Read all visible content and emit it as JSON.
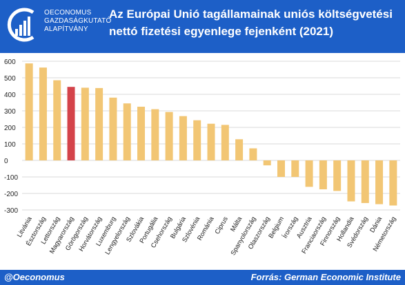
{
  "logo": {
    "lines": [
      "OECONOMUS",
      "GAZDASÁGKUTATÓ",
      "ALAPÍTVÁNY"
    ]
  },
  "header": {
    "title_lines": [
      "Az Európai Unió tagállamainak uniós költségvetési",
      "nettó fizetési egyenlege fejenként (2021)"
    ]
  },
  "footer": {
    "left": "@Oeconomus",
    "right": "Forrás: German Economic Institute"
  },
  "colors": {
    "header_bg": "#1d5fc7",
    "bar": "#f2c674",
    "highlight": "#d4434a",
    "grid": "#d9d9d9"
  },
  "chart_data": {
    "type": "bar",
    "title": "Az Európai Unió tagállamainak uniós költségvetési nettó fizetési egyenlege fejenként (2021)",
    "xlabel": "",
    "ylabel": "",
    "ylim": [
      -300,
      600
    ],
    "yticks": [
      -300,
      -200,
      -100,
      0,
      100,
      200,
      300,
      400,
      500,
      600
    ],
    "grid": true,
    "highlight": "Magyarország",
    "categories": [
      "Litvánia",
      "Észtország",
      "Lettország",
      "Magyarország",
      "Görögország",
      "Horvátország",
      "Luxemburg",
      "Lengyelország",
      "Szlovákia",
      "Portugália",
      "Csehország",
      "Bulgária",
      "Szlovénia",
      "Románia",
      "Ciprus",
      "Málta",
      "Spanyolország",
      "Olaszország",
      "Belgium",
      "Írország",
      "Ausztria",
      "Franciaország",
      "Finnország",
      "Hollandia",
      "Svédország",
      "Dánia",
      "Németország"
    ],
    "values": [
      587,
      562,
      485,
      445,
      440,
      438,
      380,
      345,
      325,
      310,
      293,
      268,
      243,
      222,
      215,
      128,
      73,
      -30,
      -100,
      -100,
      -160,
      -175,
      -185,
      -248,
      -258,
      -265,
      -273
    ]
  }
}
